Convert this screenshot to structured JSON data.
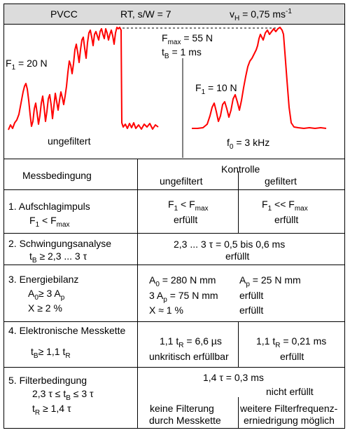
{
  "header": {
    "method": "PVCC",
    "rt_part": "RT, s/W = 7",
    "v_symbol": "v",
    "v_sub": "H",
    "v_value": " = 0,75  ms",
    "v_exp": "-1"
  },
  "diagram": {
    "left": {
      "f1_label": "F",
      "f1_sub": "1",
      "f1_value": " = 20 N",
      "caption": "ungefiltert"
    },
    "right": {
      "f1_label": "F",
      "f1_sub": "1",
      "f1_value": " = 10 N",
      "caption_symbol": "f",
      "caption_sub": "0",
      "caption_value": " = 3 kHz"
    },
    "fmax_label": "F",
    "fmax_sub": "max",
    "fmax_value": " = 55 N",
    "tb_label": "t",
    "tb_sub": "B",
    "tb_value": "   = 1 ms",
    "curve_color": "#ff0000"
  },
  "table": {
    "col_condition": "Messbedingung",
    "col_kontrolle": "Kontrolle",
    "col_unfiltered": "ungefiltert",
    "col_filtered": "gefiltert",
    "rows": [
      {
        "title": "1. Aufschlagimpuls",
        "cond_a": "F",
        "cond_a_sub": "1",
        "cond_a_rest": " <  F",
        "cond_a_sub2": "max",
        "u1": "F",
        "u1_sub": "1",
        "u1_rest": " <  F",
        "u1_sub2": "max",
        "u2": "erfüllt",
        "f1": "F",
        "f1_sub": "1",
        "f1_rest": " <<  F",
        "f1_sub2": "max",
        "f2": "erfüllt"
      },
      {
        "title": "2. Schwingungsanalyse",
        "cond_a": "t",
        "cond_a_sub": "B",
        "cond_a_rest": " ≥ 2,3 ... 3 τ",
        "span1": "2,3 ... 3 τ = 0,5 bis 0,6 ms",
        "span2": "erfüllt"
      },
      {
        "title": "3. Energiebilanz",
        "cond_a": "A",
        "cond_a_sub": "0",
        "cond_a_rest": "≥ 3 A",
        "cond_a_sub2": "p",
        "cond_b": "X   ≥ 2 %",
        "u1": "A",
        "u1_sub": "0",
        "u1_rest": " = 280 N mm",
        "u2": "3 A",
        "u2_sub": "p",
        "u2_rest": " = 75 N mm",
        "u3": "X  ≈ 1 %",
        "f1": "A",
        "f1_sub": "p",
        "f1_rest": " = 25 N mm",
        "f2": "erfüllt",
        "f3": "erfüllt"
      },
      {
        "title": "4. Elektronische Messkette",
        "cond_a": "t",
        "cond_a_sub": "B",
        "cond_a_rest": "≥ 1,1  t",
        "cond_a_sub2": "R",
        "u1": "1,1 t",
        "u1_sub": "R",
        "u1_rest": " = 6,6 µs",
        "u2": "unkritisch erfüllbar",
        "f1": "1,1 t",
        "f1_sub": "R",
        "f1_rest": " = 0,21 ms",
        "f2": "erfüllt"
      },
      {
        "title": "5. Filterbedingung",
        "cond_a": "2,3 τ  ≤ t",
        "cond_a_sub": "B",
        "cond_a_rest": " ≤ 3 τ",
        "cond_b": "t",
        "cond_b_sub": "R",
        "cond_b_rest": " ≥ 1,4 τ",
        "span1": "1,4 τ = 0,3 ms",
        "f_top": "nicht erfüllt",
        "u1": "keine Filterung",
        "u2": "durch Messkette",
        "f1": "weitere Filterfrequenz-",
        "f2": "erniedrigung möglich"
      }
    ]
  }
}
